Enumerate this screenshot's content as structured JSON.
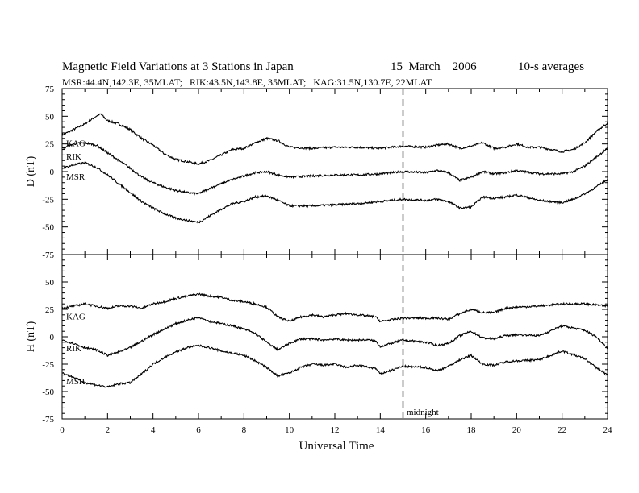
{
  "header": {
    "title": "Magnetic Field Variations at 3 Stations in Japan",
    "date": "15  March    2006",
    "averaging": "10-s averages",
    "stations_line": "MSR:44.4N,142.3E, 35MLAT;   RIK:43.5N,143.8E, 35MLAT;   KAG:31.5N,130.7E, 22MLAT"
  },
  "chart_data": [
    {
      "type": "line",
      "panel": "top",
      "ylabel": "D (nT)",
      "xlabel": "",
      "ylim": [
        -75,
        75
      ],
      "yticks": [
        "75",
        "50",
        "25",
        "0",
        "-25",
        "-50",
        "-75"
      ],
      "xlim": [
        0,
        24
      ],
      "series": [
        {
          "name": "KAG",
          "x": [
            0,
            0.5,
            1,
            1.5,
            1.7,
            2,
            2.5,
            3,
            3.5,
            4,
            4.5,
            5,
            5.5,
            6,
            6.5,
            7,
            7.5,
            8,
            8.5,
            9,
            9.5,
            10,
            11,
            12,
            13,
            14,
            15,
            16,
            16.5,
            17,
            17.5,
            18,
            18.5,
            19,
            19.5,
            20,
            20.5,
            21,
            22,
            22.5,
            23,
            23.5,
            24
          ],
          "y": [
            33,
            38,
            43,
            50,
            52,
            46,
            43,
            38,
            30,
            24,
            16,
            11,
            9,
            7,
            10,
            15,
            20,
            21,
            26,
            30,
            28,
            22,
            21,
            22,
            22,
            21,
            23,
            22,
            24,
            25,
            21,
            23,
            26,
            21,
            22,
            25,
            22,
            22,
            18,
            20,
            26,
            36,
            44
          ]
        },
        {
          "name": "RIK",
          "x": [
            0,
            0.5,
            1,
            1.5,
            2,
            2.5,
            3,
            3.5,
            4,
            4.5,
            5,
            5.5,
            6,
            6.5,
            7,
            7.5,
            8,
            8.5,
            9,
            9.5,
            10,
            11,
            12,
            13,
            14,
            15,
            16,
            16.5,
            17,
            17.5,
            18,
            18.5,
            19,
            19.5,
            20,
            21,
            22,
            22.5,
            23,
            23.5,
            24
          ],
          "y": [
            21,
            25,
            26,
            24,
            17,
            10,
            3,
            -5,
            -10,
            -14,
            -17,
            -19,
            -20,
            -15,
            -11,
            -7,
            -4,
            -1,
            0,
            -3,
            -5,
            -4,
            -3,
            -3,
            -2,
            0,
            -1,
            1,
            -1,
            -8,
            -5,
            0,
            -2,
            -1,
            1,
            -2,
            -2,
            0,
            5,
            13,
            21
          ]
        },
        {
          "name": "MSR",
          "x": [
            0,
            0.5,
            1,
            1.5,
            2,
            2.5,
            3,
            3.5,
            4,
            4.5,
            5,
            5.5,
            6,
            6.5,
            7,
            7.5,
            8,
            8.5,
            9,
            9.5,
            10,
            11,
            12,
            13,
            14,
            15,
            16,
            16.5,
            17,
            17.5,
            18,
            18.5,
            19,
            19.5,
            20,
            21,
            22,
            22.5,
            23,
            23.5,
            24
          ],
          "y": [
            3,
            6,
            8,
            4,
            -3,
            -11,
            -19,
            -27,
            -33,
            -38,
            -42,
            -44,
            -46,
            -40,
            -34,
            -29,
            -27,
            -23,
            -22,
            -26,
            -31,
            -31,
            -30,
            -29,
            -27,
            -25,
            -26,
            -25,
            -27,
            -33,
            -32,
            -23,
            -24,
            -23,
            -21,
            -26,
            -28,
            -25,
            -20,
            -14,
            -7
          ]
        }
      ]
    },
    {
      "type": "line",
      "panel": "bottom",
      "ylabel": "H (nT)",
      "xlabel": "Universal Time",
      "ylim": [
        -75,
        75
      ],
      "yticks": [
        "50",
        "25",
        "0",
        "-25",
        "-50",
        "-75"
      ],
      "xlim": [
        0,
        24
      ],
      "xticks": [
        "0",
        "2",
        "4",
        "6",
        "8",
        "10",
        "12",
        "14",
        "16",
        "18",
        "20",
        "22",
        "24"
      ],
      "series": [
        {
          "name": "KAG",
          "x": [
            0,
            0.5,
            1,
            1.5,
            2,
            2.5,
            3,
            3.5,
            4,
            4.5,
            5,
            5.5,
            6,
            6.5,
            7,
            7.5,
            8,
            8.5,
            9,
            9.5,
            10,
            10.5,
            11,
            11.5,
            12,
            12.5,
            13,
            13.5,
            13.8,
            14,
            15,
            16,
            16.5,
            17,
            17.5,
            18,
            18.5,
            19,
            19.5,
            20,
            21,
            22,
            23,
            23.5,
            24
          ],
          "y": [
            26,
            28,
            30,
            28,
            26,
            28,
            28,
            26,
            30,
            32,
            35,
            37,
            39,
            37,
            36,
            33,
            32,
            30,
            27,
            18,
            14,
            18,
            20,
            18,
            20,
            21,
            20,
            19,
            18,
            14,
            17,
            17,
            17,
            16,
            21,
            25,
            22,
            22,
            26,
            27,
            28,
            30,
            30,
            29,
            28
          ]
        },
        {
          "name": "RIK",
          "x": [
            0,
            0.5,
            1,
            1.5,
            2,
            2.5,
            3,
            3.5,
            4,
            4.5,
            5,
            5.5,
            6,
            6.5,
            7,
            7.5,
            8,
            8.5,
            9,
            9.5,
            10,
            10.5,
            11,
            11.5,
            12,
            12.5,
            13,
            13.5,
            13.8,
            14,
            15,
            16,
            16.5,
            17,
            17.5,
            18,
            18.5,
            19,
            19.5,
            20,
            21,
            22,
            23,
            23.5,
            24
          ],
          "y": [
            -3,
            -6,
            -10,
            -12,
            -17,
            -14,
            -10,
            -4,
            2,
            7,
            12,
            15,
            18,
            14,
            12,
            10,
            7,
            3,
            -5,
            -12,
            -6,
            -2,
            -2,
            -3,
            -2,
            -3,
            -3,
            -3,
            -4,
            -9,
            -3,
            -5,
            -8,
            -6,
            1,
            5,
            -1,
            -2,
            1,
            2,
            1,
            10,
            6,
            0,
            -10
          ]
        },
        {
          "name": "MSR",
          "x": [
            0,
            0.5,
            1,
            1.5,
            2,
            2.5,
            3,
            3.5,
            4,
            4.5,
            5,
            5.5,
            6,
            6.5,
            7,
            7.5,
            8,
            8.5,
            9,
            9.5,
            10,
            10.5,
            11,
            11.5,
            12,
            12.5,
            13,
            13.5,
            13.8,
            14,
            15,
            16,
            16.5,
            17,
            17.5,
            18,
            18.5,
            19,
            19.5,
            20,
            21,
            22,
            23,
            23.5,
            24
          ],
          "y": [
            -33,
            -37,
            -42,
            -44,
            -46,
            -43,
            -42,
            -34,
            -25,
            -19,
            -14,
            -10,
            -8,
            -10,
            -13,
            -15,
            -17,
            -22,
            -28,
            -36,
            -33,
            -28,
            -25,
            -26,
            -25,
            -28,
            -26,
            -28,
            -29,
            -34,
            -27,
            -28,
            -31,
            -27,
            -21,
            -17,
            -25,
            -26,
            -23,
            -22,
            -21,
            -13,
            -20,
            -28,
            -35
          ]
        }
      ]
    }
  ],
  "annotations": {
    "midnight_ut": 15,
    "midnight_label": "midnight"
  }
}
